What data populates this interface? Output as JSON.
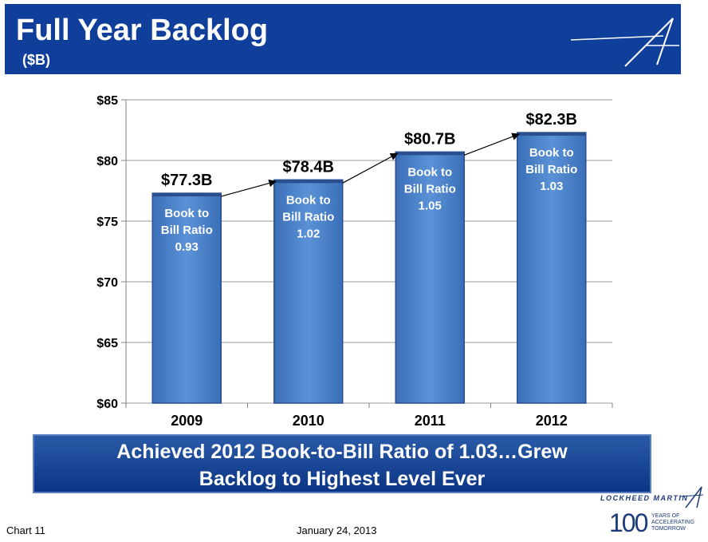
{
  "header": {
    "title": "Full Year Backlog",
    "subtitle": "($B)"
  },
  "colors": {
    "header_bg": "#0f3f9b",
    "bar": "#4a82c8",
    "banner": "#1a4a9a"
  },
  "chart_data": {
    "type": "bar",
    "categories": [
      "2009",
      "2010",
      "2011",
      "2012"
    ],
    "values": [
      77.3,
      78.4,
      80.7,
      82.3
    ],
    "value_labels": [
      "$77.3B",
      "$78.4B",
      "$80.7B",
      "$82.3B"
    ],
    "bar_annotations": [
      [
        "Book to",
        "Bill Ratio",
        "0.93"
      ],
      [
        "Book to",
        "Bill Ratio",
        "1.02"
      ],
      [
        "Book to",
        "Bill Ratio",
        "1.05"
      ],
      [
        "Book to",
        "Bill Ratio",
        "1.03"
      ]
    ],
    "ylim": [
      60,
      85
    ],
    "yticks": [
      60,
      65,
      70,
      75,
      80,
      85
    ],
    "ytick_labels": [
      "$60",
      "$65",
      "$70",
      "$75",
      "$80",
      "$85"
    ],
    "grid": true,
    "arrows_between_bars": true
  },
  "banner": {
    "line1": "Achieved 2012 Book-to-Bill Ratio of 1.03…Grew",
    "line2": "Backlog to Highest Level Ever"
  },
  "footer": {
    "chart_label": "Chart 11",
    "date": "January 24, 2013",
    "company": "LOCKHEED MARTIN",
    "anniversary_number": "100",
    "anniversary_text": [
      "YEARS OF",
      "ACCELERATING",
      "TOMORROW"
    ]
  }
}
